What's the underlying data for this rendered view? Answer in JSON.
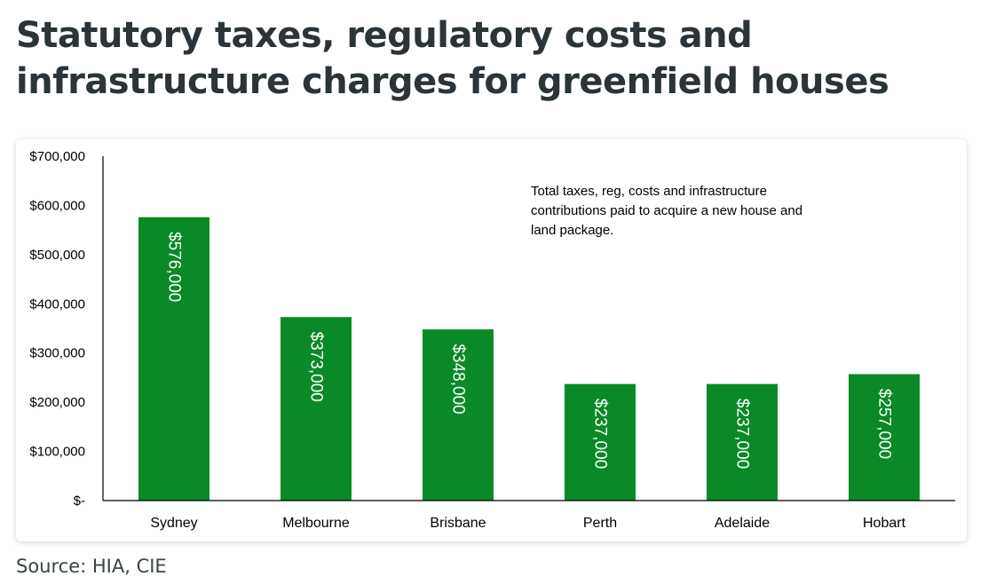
{
  "title": "Statutory taxes, regulatory costs and infrastructure charges for greenfield houses",
  "source": "Source: HIA, CIE",
  "colors": {
    "bar": "#0a8a26",
    "axis": "#000000"
  },
  "chart_data": {
    "type": "bar",
    "categories": [
      "Sydney",
      "Melbourne",
      "Brisbane",
      "Perth",
      "Adelaide",
      "Hobart"
    ],
    "values": [
      576000,
      373000,
      348000,
      237000,
      237000,
      257000
    ],
    "data_labels": [
      "$576,000",
      "$373,000",
      "$348,000",
      "$237,000",
      "$237,000",
      "$257,000"
    ],
    "ylim": [
      0,
      700000
    ],
    "yticks": [
      0,
      100000,
      200000,
      300000,
      400000,
      500000,
      600000,
      700000
    ],
    "ytick_labels": [
      "$-",
      "$100,000",
      "$200,000",
      "$300,000",
      "$400,000",
      "$500,000",
      "$600,000",
      "$700,000"
    ],
    "annotation": [
      "Total taxes, reg, costs and infrastructure",
      "contributions paid to acquire a new house and",
      "land package."
    ],
    "grid": false,
    "legend": "none"
  }
}
